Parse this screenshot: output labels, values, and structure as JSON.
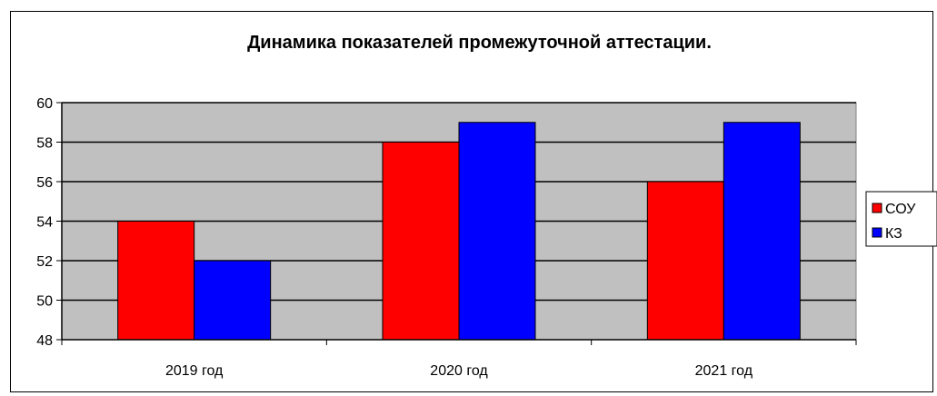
{
  "chart_data": {
    "type": "bar",
    "title": "Динамика показателей промежуточной аттестации.",
    "categories": [
      "2019 год",
      "2020 год",
      "2021 год"
    ],
    "series": [
      {
        "name": "СОУ",
        "values": [
          54,
          58,
          56
        ],
        "color": "#ff0000"
      },
      {
        "name": "КЗ",
        "values": [
          52,
          59,
          59
        ],
        "color": "#0000ff"
      }
    ],
    "ylim": [
      48,
      60
    ],
    "yticks": [
      "48",
      "50",
      "52",
      "54",
      "56",
      "58",
      "60"
    ],
    "grid": true,
    "legend": "right",
    "plot_background": "#c0c0c0"
  }
}
